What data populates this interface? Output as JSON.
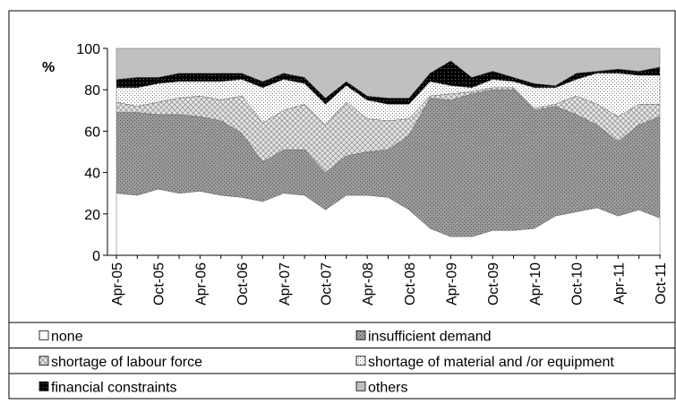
{
  "chart_data": {
    "type": "stacked-area",
    "y_label": "%",
    "categories": [
      "Apr-05",
      null,
      "Oct-05",
      null,
      "Apr-06",
      null,
      "Oct-06",
      null,
      "Apr-07",
      null,
      "Oct-07",
      null,
      "Apr-08",
      null,
      "Oct-08",
      null,
      "Apr-09",
      null,
      "Oct-09",
      null,
      "Apr-10",
      null,
      "Oct-10",
      null,
      "Apr-11",
      null,
      "Oct-11"
    ],
    "ylim": [
      0,
      100
    ],
    "yticks": [
      0,
      20,
      40,
      60,
      80,
      100
    ],
    "series": [
      {
        "name": "none",
        "color": "#ffffff",
        "values": [
          30,
          29,
          32,
          30,
          31,
          29,
          28,
          26,
          30,
          29,
          22,
          29,
          29,
          28,
          22,
          13,
          9,
          9,
          12,
          12,
          13,
          19,
          21,
          23,
          19,
          22,
          18
        ]
      },
      {
        "name": "insufficient demand",
        "color": "#8c8c8c",
        "values": [
          39,
          40,
          36,
          38,
          36,
          36,
          31,
          19,
          21,
          22,
          18,
          19,
          21,
          23,
          36,
          63,
          66,
          69,
          68,
          68,
          57,
          53,
          47,
          40,
          36,
          41,
          49
        ]
      },
      {
        "name": "shortage of labour force",
        "color": "#d0d0d0",
        "values": [
          5,
          3,
          6,
          8,
          10,
          10,
          18,
          19,
          19,
          22,
          23,
          26,
          16,
          14,
          8,
          1,
          3,
          1,
          1,
          1,
          1,
          1,
          9,
          10,
          12,
          10,
          6
        ]
      },
      {
        "name": "shortage of material and /or equipment",
        "color": "#ececec",
        "values": [
          7,
          9,
          9,
          8,
          7,
          9,
          8,
          17,
          15,
          10,
          10,
          8,
          9,
          8,
          7,
          7,
          4,
          2,
          4,
          3,
          10,
          8,
          8,
          15,
          21,
          14,
          14
        ]
      },
      {
        "name": "financial constraints",
        "color": "#000000",
        "values": [
          4,
          5,
          3,
          4,
          4,
          4,
          3,
          3,
          3,
          3,
          3,
          2,
          2,
          3,
          3,
          4,
          12,
          5,
          4,
          2,
          2,
          1,
          3,
          1,
          2,
          2,
          4
        ]
      },
      {
        "name": "others",
        "color": "#c0c0c0",
        "values": [
          15,
          14,
          14,
          12,
          12,
          12,
          12,
          16,
          12,
          14,
          24,
          16,
          23,
          24,
          24,
          12,
          6,
          14,
          11,
          14,
          17,
          18,
          12,
          11,
          10,
          11,
          9
        ]
      }
    ]
  }
}
